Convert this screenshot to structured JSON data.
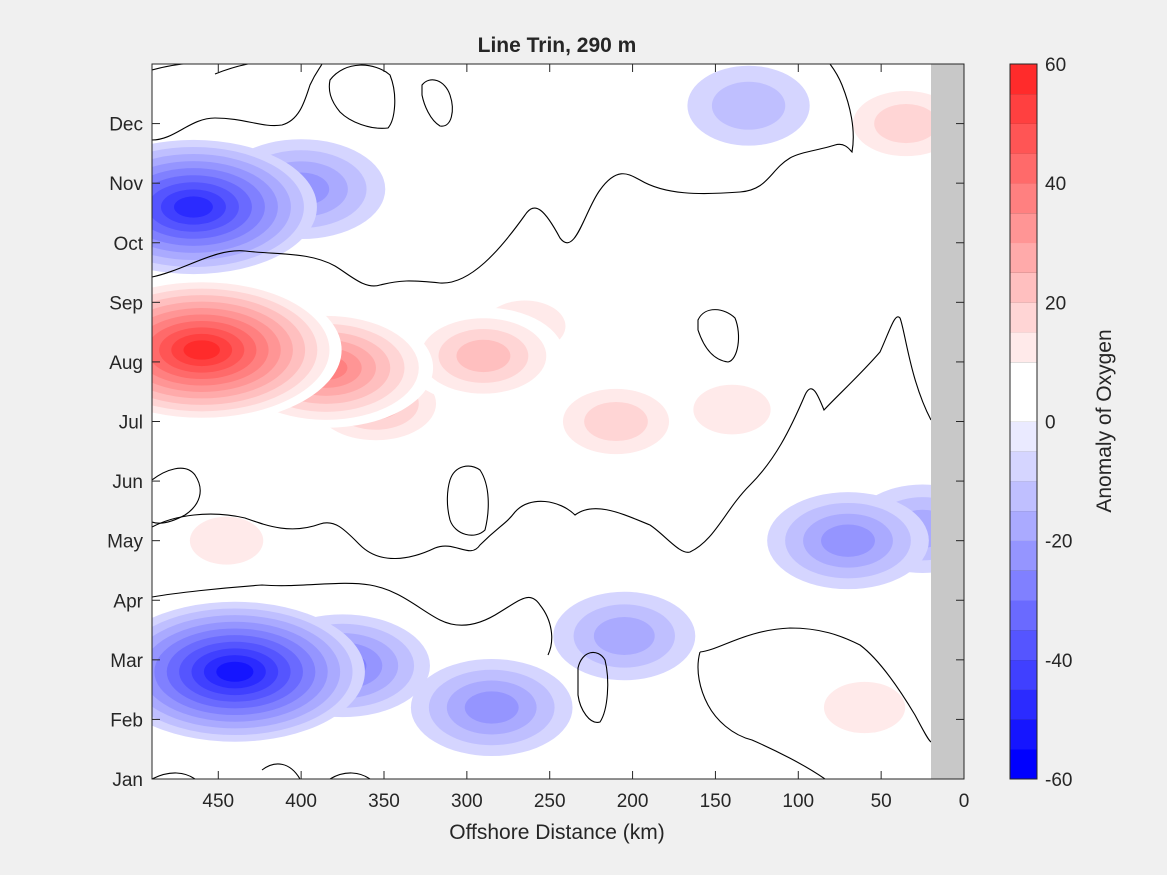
{
  "chart_data": {
    "type": "heatmap",
    "subtype": "filled-contour",
    "title": "Line Trin, 290 m",
    "xlabel": "Offshore Distance (km)",
    "ylabel": "",
    "colorbar_label": "Anomaly of Oxygen",
    "x_axis_reversed": true,
    "xlim": [
      0,
      490
    ],
    "x_ticks": [
      450,
      400,
      350,
      300,
      250,
      200,
      150,
      100,
      50,
      0
    ],
    "x_tick_labels": [
      "450",
      "400",
      "350",
      "300",
      "250",
      "200",
      "150",
      "100",
      "50",
      "0"
    ],
    "y_ticks": [
      1,
      2,
      3,
      4,
      5,
      6,
      7,
      8,
      9,
      10,
      11,
      12
    ],
    "y_tick_labels": [
      "Jan",
      "Feb",
      "Mar",
      "Apr",
      "May",
      "Jun",
      "Jul",
      "Aug",
      "Sep",
      "Oct",
      "Nov",
      "Dec"
    ],
    "ylim": [
      1,
      13
    ],
    "clim": [
      -60,
      60
    ],
    "contour_interval": 5,
    "colorbar_ticks": [
      60,
      40,
      20,
      0,
      -20,
      -40,
      -60
    ],
    "colorbar_tick_labels": [
      "60",
      "40",
      "20",
      "0",
      "-20",
      "-40",
      "-60"
    ],
    "colorbar_levels": [
      -60,
      -55,
      -50,
      -45,
      -40,
      -35,
      -30,
      -25,
      -20,
      -15,
      -10,
      -5,
      0,
      5,
      10,
      15,
      20,
      25,
      30,
      35,
      40,
      45,
      50,
      55,
      60
    ],
    "colorbar_colors": [
      "#0000ff",
      "#1515ff",
      "#2b2bff",
      "#4040ff",
      "#5555ff",
      "#6a6aff",
      "#8080ff",
      "#9595ff",
      "#aaaaff",
      "#bfbfff",
      "#d5d5ff",
      "#eaeaff",
      "#ffffff",
      "#ffffff",
      "#ffeaea",
      "#ffd5d5",
      "#ffbfbf",
      "#ffaaaa",
      "#ff9595",
      "#ff8080",
      "#ff6a6a",
      "#ff5555",
      "#ff4040",
      "#ff2b2b",
      "#ff1515",
      "#ff0000"
    ],
    "zero_contour_color": "#000000",
    "no_data_color": "#c8c8c8",
    "no_data_xrange_km": [
      0,
      20
    ],
    "grid": false,
    "anomaly_centers": [
      {
        "x_km": 460,
        "month": 8.2,
        "value": 58
      },
      {
        "x_km": 385,
        "month": 7.9,
        "value": 38
      },
      {
        "x_km": 355,
        "month": 7.3,
        "value": 20
      },
      {
        "x_km": 290,
        "month": 8.1,
        "value": 22
      },
      {
        "x_km": 265,
        "month": 8.6,
        "value": 14
      },
      {
        "x_km": 210,
        "month": 7.0,
        "value": 18
      },
      {
        "x_km": 140,
        "month": 7.2,
        "value": 12
      },
      {
        "x_km": 95,
        "month": 10.1,
        "value": 9
      },
      {
        "x_km": 35,
        "month": 12.0,
        "value": 18
      },
      {
        "x_km": 60,
        "month": 2.2,
        "value": 14
      },
      {
        "x_km": 470,
        "month": 12.5,
        "value": 9
      },
      {
        "x_km": 445,
        "month": 5.0,
        "value": 10
      },
      {
        "x_km": 465,
        "month": 10.6,
        "value": -48
      },
      {
        "x_km": 400,
        "month": 10.9,
        "value": -24
      },
      {
        "x_km": 440,
        "month": 2.8,
        "value": -52
      },
      {
        "x_km": 375,
        "month": 2.9,
        "value": -26
      },
      {
        "x_km": 285,
        "month": 2.2,
        "value": -22
      },
      {
        "x_km": 205,
        "month": 3.4,
        "value": -16
      },
      {
        "x_km": 70,
        "month": 5.0,
        "value": -22
      },
      {
        "x_km": 25,
        "month": 5.2,
        "value": -16
      },
      {
        "x_km": 130,
        "month": 12.3,
        "value": -10
      }
    ]
  }
}
